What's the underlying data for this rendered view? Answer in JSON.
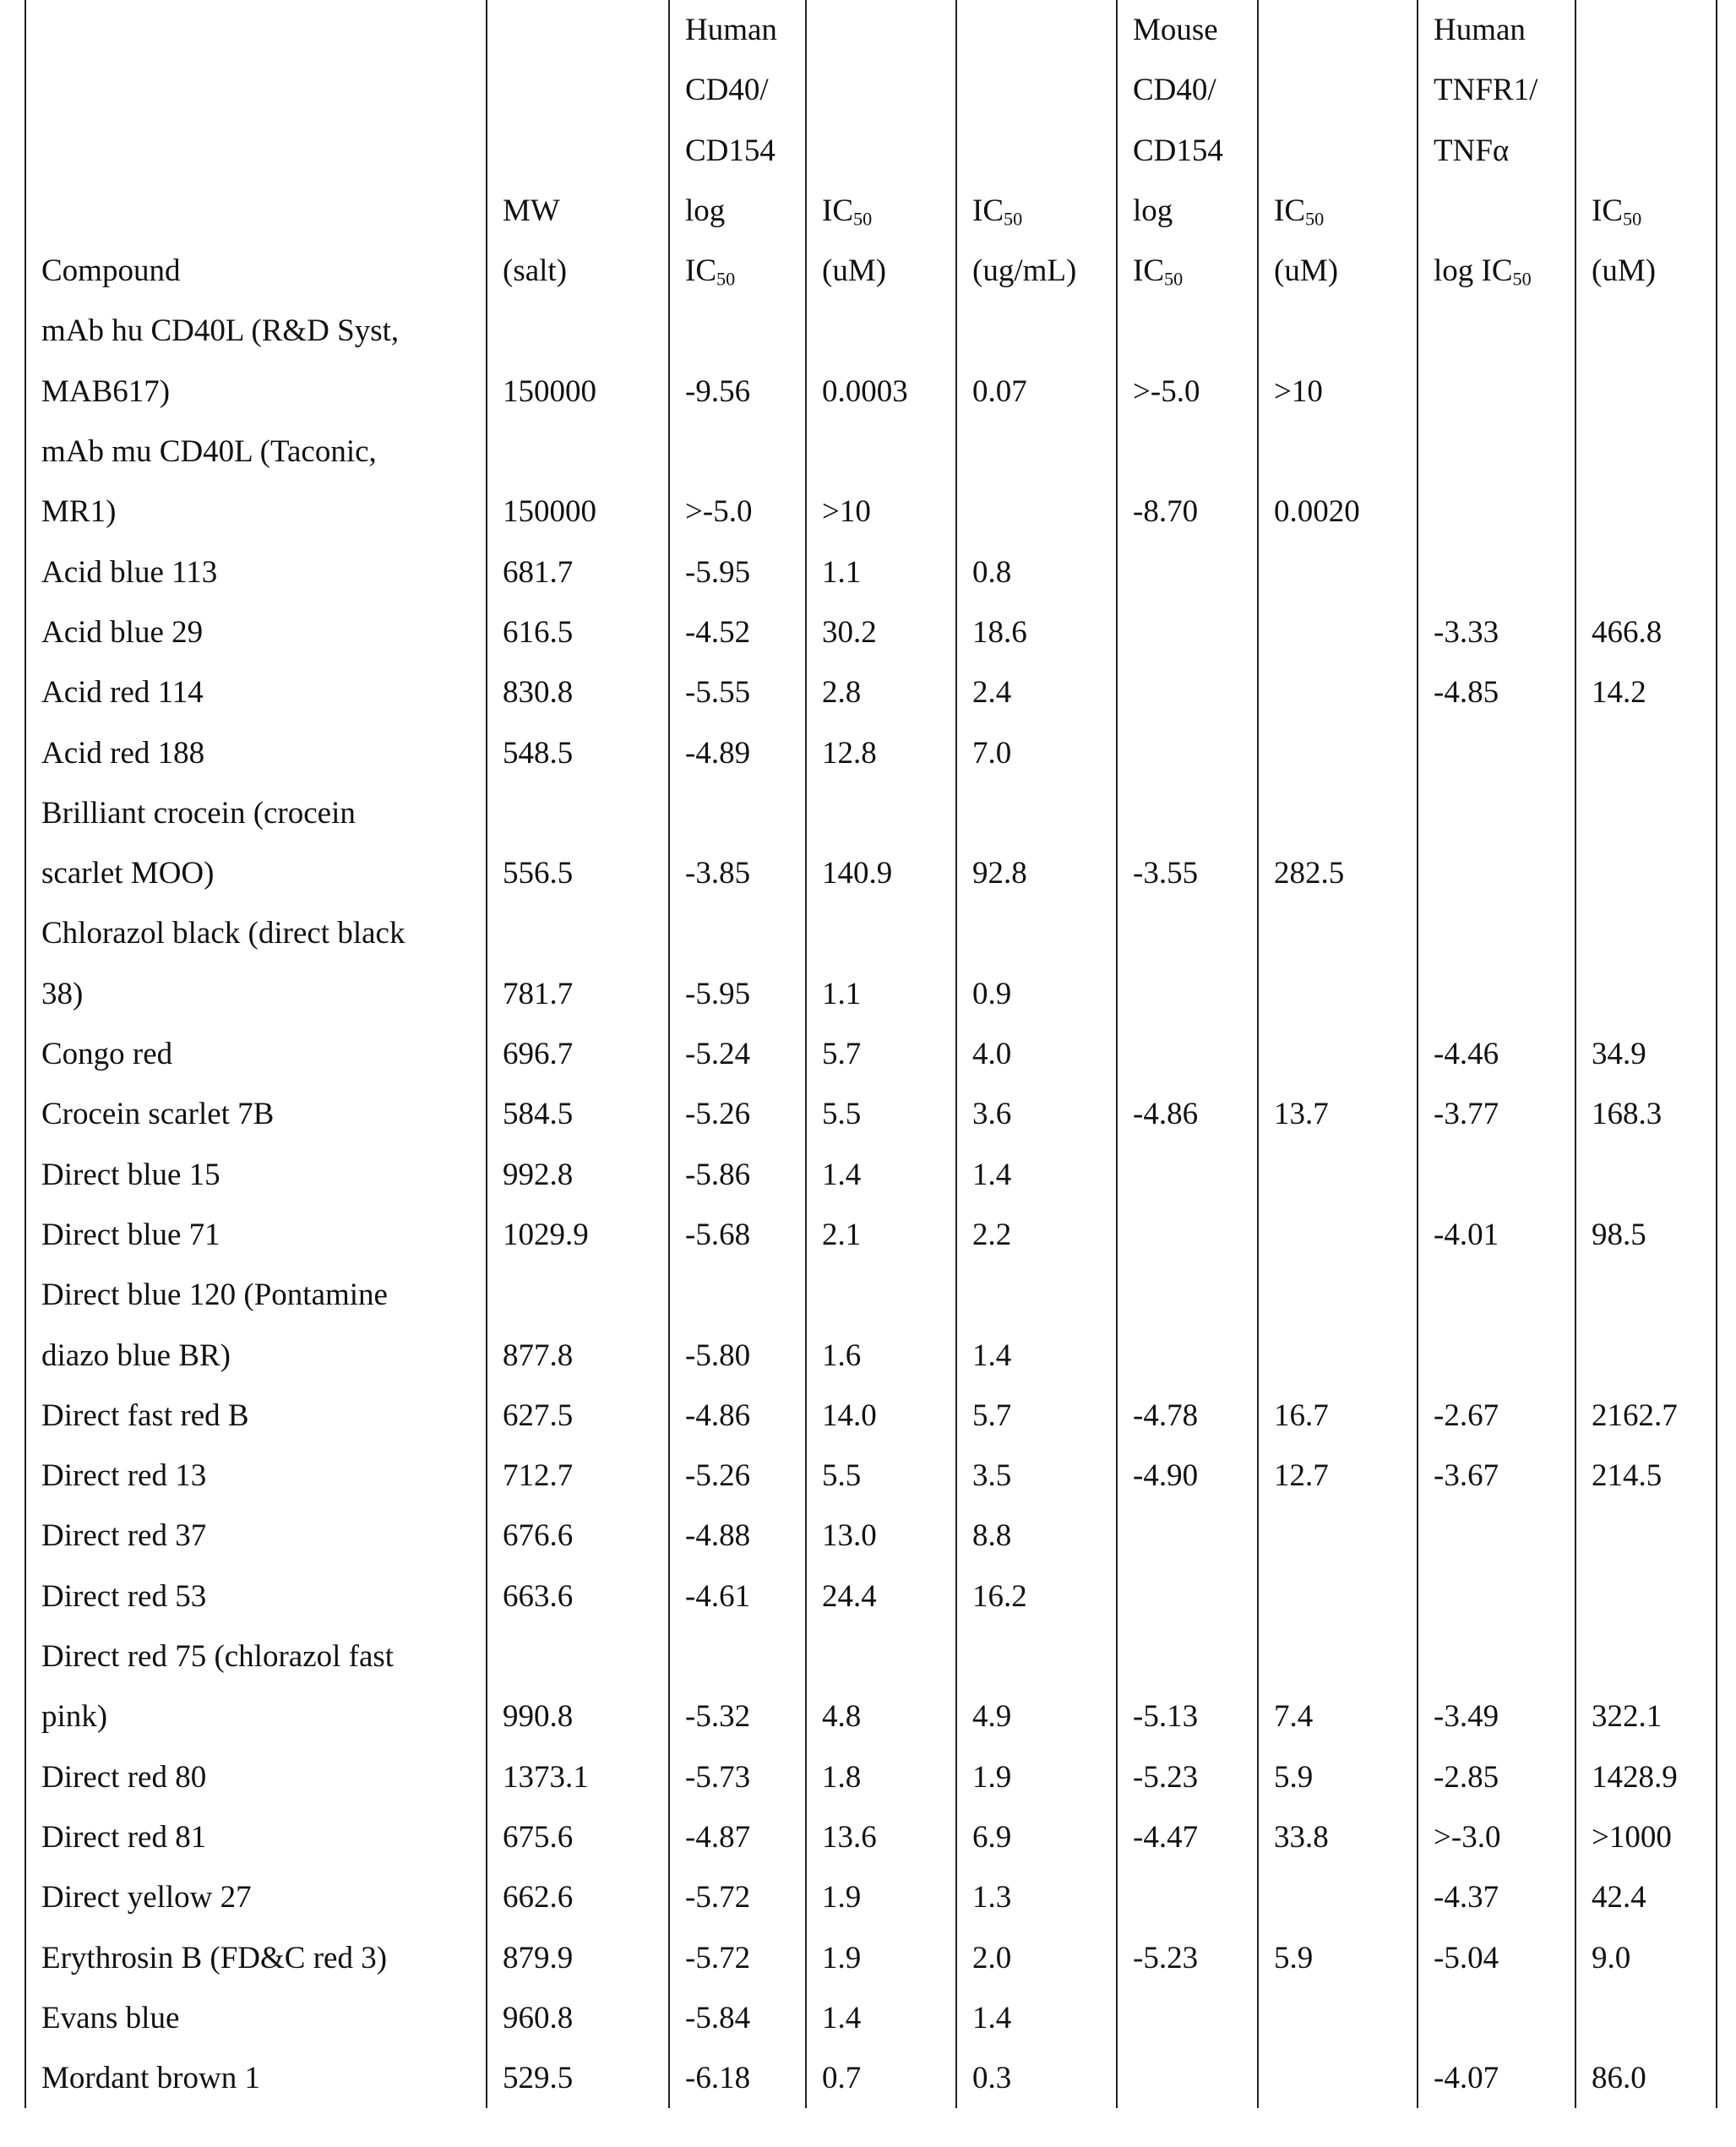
{
  "header": {
    "columns": [
      {
        "lines": [
          "Compound"
        ]
      },
      {
        "lines": [
          "MW",
          "(salt)"
        ]
      },
      {
        "lines": [
          "Human",
          "CD40/",
          "CD154",
          "log",
          {
            "main": "IC",
            "sub": "50"
          }
        ]
      },
      {
        "lines": [
          {
            "main": "IC",
            "sub": "50"
          },
          "(uM)"
        ]
      },
      {
        "lines": [
          {
            "main": "IC",
            "sub": "50"
          },
          "(ug/mL)"
        ]
      },
      {
        "lines": [
          "Mouse",
          "CD40/",
          "CD154",
          "log",
          {
            "main": "IC",
            "sub": "50"
          }
        ]
      },
      {
        "lines": [
          {
            "main": "IC",
            "sub": "50"
          },
          "(uM)"
        ]
      },
      {
        "lines": [
          "Human",
          "TNFR1/",
          "TNFα",
          null,
          {
            "main": "log IC",
            "sub": "50"
          }
        ]
      },
      {
        "lines": [
          {
            "main": "IC",
            "sub": "50"
          },
          "(uM)"
        ]
      }
    ]
  },
  "rows": [
    {
      "compound": [
        "mAb hu CD40L (R&D Syst,",
        "MAB617)"
      ],
      "values": [
        "150000",
        "-9.56",
        "0.0003",
        "0.07",
        ">-5.0",
        ">10",
        null,
        null
      ]
    },
    {
      "compound": [
        "mAb mu CD40L (Taconic,",
        "MR1)"
      ],
      "values": [
        "150000",
        ">-5.0",
        ">10",
        null,
        "-8.70",
        "0.0020",
        null,
        null
      ]
    },
    {
      "compound": [
        "Acid blue 113"
      ],
      "values": [
        "681.7",
        "-5.95",
        "1.1",
        "0.8",
        null,
        null,
        null,
        null
      ]
    },
    {
      "compound": [
        "Acid blue 29"
      ],
      "values": [
        "616.5",
        "-4.52",
        "30.2",
        "18.6",
        null,
        null,
        "-3.33",
        "466.8"
      ]
    },
    {
      "compound": [
        "Acid red 114"
      ],
      "values": [
        "830.8",
        "-5.55",
        "2.8",
        "2.4",
        null,
        null,
        "-4.85",
        "14.2"
      ]
    },
    {
      "compound": [
        "Acid red 188"
      ],
      "values": [
        "548.5",
        "-4.89",
        "12.8",
        "7.0",
        null,
        null,
        null,
        null
      ]
    },
    {
      "compound": [
        "Brilliant crocein (crocein",
        "scarlet MOO)"
      ],
      "values": [
        "556.5",
        "-3.85",
        "140.9",
        "92.8",
        "-3.55",
        "282.5",
        null,
        null
      ]
    },
    {
      "compound": [
        "Chlorazol black (direct black",
        "38)"
      ],
      "values": [
        "781.7",
        "-5.95",
        "1.1",
        "0.9",
        null,
        null,
        null,
        null
      ]
    },
    {
      "compound": [
        "Congo red"
      ],
      "values": [
        "696.7",
        "-5.24",
        "5.7",
        "4.0",
        null,
        null,
        "-4.46",
        "34.9"
      ]
    },
    {
      "compound": [
        "Crocein scarlet 7B"
      ],
      "values": [
        "584.5",
        "-5.26",
        "5.5",
        "3.6",
        "-4.86",
        "13.7",
        "-3.77",
        "168.3"
      ]
    },
    {
      "compound": [
        "Direct blue 15"
      ],
      "values": [
        "992.8",
        "-5.86",
        "1.4",
        "1.4",
        null,
        null,
        null,
        null
      ]
    },
    {
      "compound": [
        "Direct blue 71"
      ],
      "values": [
        "1029.9",
        "-5.68",
        "2.1",
        "2.2",
        null,
        null,
        "-4.01",
        "98.5"
      ]
    },
    {
      "compound": [
        "Direct blue 120 (Pontamine",
        "diazo blue BR)"
      ],
      "values": [
        "877.8",
        "-5.80",
        "1.6",
        "1.4",
        null,
        null,
        null,
        null
      ]
    },
    {
      "compound": [
        "Direct fast red B"
      ],
      "values": [
        "627.5",
        "-4.86",
        "14.0",
        "5.7",
        "-4.78",
        "16.7",
        "-2.67",
        "2162.7"
      ]
    },
    {
      "compound": [
        "Direct red 13"
      ],
      "values": [
        "712.7",
        "-5.26",
        "5.5",
        "3.5",
        "-4.90",
        "12.7",
        "-3.67",
        "214.5"
      ]
    },
    {
      "compound": [
        "Direct red 37"
      ],
      "values": [
        "676.6",
        "-4.88",
        "13.0",
        "8.8",
        null,
        null,
        null,
        null
      ]
    },
    {
      "compound": [
        "Direct red 53"
      ],
      "values": [
        "663.6",
        "-4.61",
        "24.4",
        "16.2",
        null,
        null,
        null,
        null
      ]
    },
    {
      "compound": [
        "Direct red 75 (chlorazol fast",
        "pink)"
      ],
      "values": [
        "990.8",
        "-5.32",
        "4.8",
        "4.9",
        "-5.13",
        "7.4",
        "-3.49",
        "322.1"
      ]
    },
    {
      "compound": [
        "Direct red 80"
      ],
      "values": [
        "1373.1",
        "-5.73",
        "1.8",
        "1.9",
        "-5.23",
        "5.9",
        "-2.85",
        "1428.9"
      ]
    },
    {
      "compound": [
        "Direct red 81"
      ],
      "values": [
        "675.6",
        "-4.87",
        "13.6",
        "6.9",
        "-4.47",
        "33.8",
        ">-3.0",
        ">1000"
      ]
    },
    {
      "compound": [
        "Direct yellow 27"
      ],
      "values": [
        "662.6",
        "-5.72",
        "1.9",
        "1.3",
        null,
        null,
        "-4.37",
        "42.4"
      ]
    },
    {
      "compound": [
        "Erythrosin B (FD&C red 3)"
      ],
      "values": [
        "879.9",
        "-5.72",
        "1.9",
        "2.0",
        "-5.23",
        "5.9",
        "-5.04",
        "9.0"
      ]
    },
    {
      "compound": [
        "Evans blue"
      ],
      "values": [
        "960.8",
        "-5.84",
        "1.4",
        "1.4",
        null,
        null,
        null,
        null
      ]
    },
    {
      "compound": [
        "Mordant brown 1"
      ],
      "values": [
        "529.5",
        "-6.18",
        "0.7",
        "0.3",
        null,
        null,
        "-4.07",
        "86.0"
      ]
    }
  ]
}
